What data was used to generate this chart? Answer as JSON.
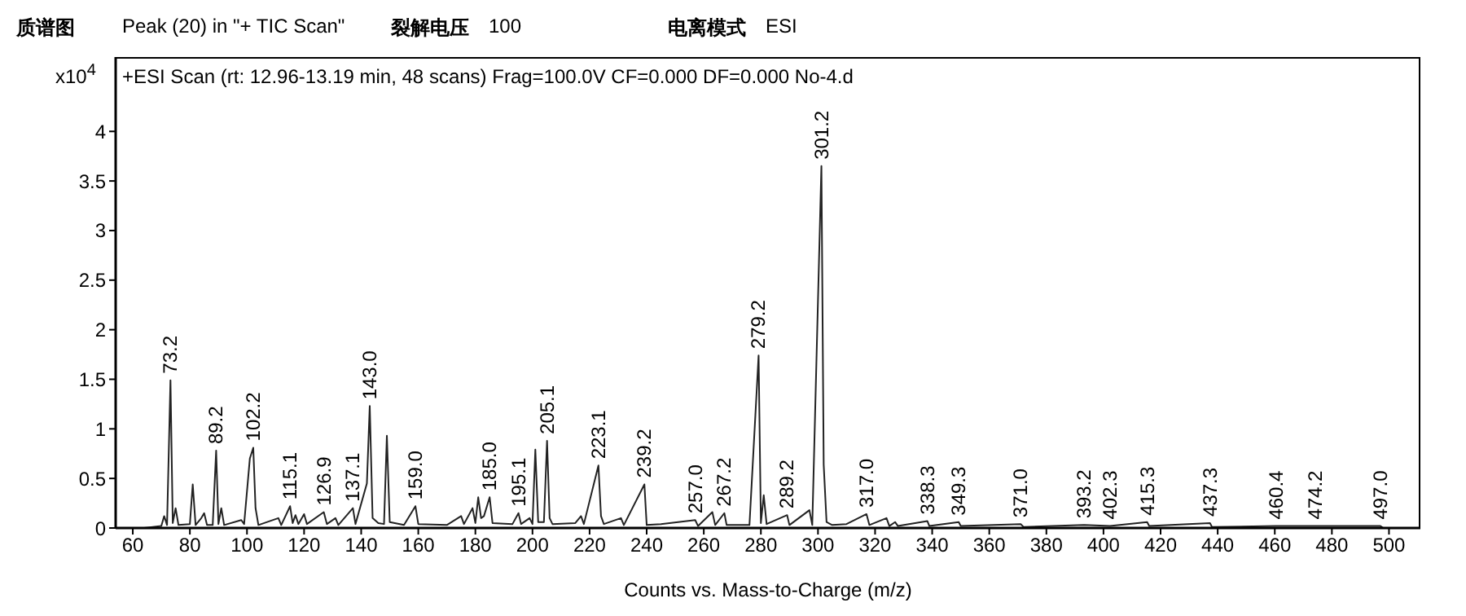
{
  "chart_data": {
    "type": "line",
    "title": "+ESI Scan (rt: 12.96-13.19 min, 48 scans) Frag=100.0V CF=0.000 DF=0.000 No-4.d",
    "xlabel": "Counts vs. Mass-to-Charge (m/z)",
    "ylabel": "x10$^{4}$",
    "xlim": [
      54,
      511
    ],
    "xticks": [
      60,
      80,
      100,
      120,
      140,
      160,
      180,
      200,
      220,
      240,
      260,
      280,
      300,
      320,
      340,
      360,
      380,
      400,
      420,
      440,
      460,
      480,
      500
    ],
    "ylim": [
      0,
      4.75
    ],
    "yticks": [
      0,
      0.5,
      1,
      1.5,
      2,
      2.5,
      3,
      3.5,
      4
    ],
    "grid": false,
    "legend": false,
    "series": [
      {
        "color": "#222222",
        "x": [
          64,
          70,
          71,
          72,
          73.2,
          74,
          75,
          76,
          80,
          81,
          82,
          84,
          85,
          86,
          88,
          89.2,
          90,
          91,
          92,
          98,
          99,
          101,
          102.2,
          103,
          104,
          111,
          112,
          115.1,
          116,
          117,
          118,
          120,
          121,
          126.9,
          128,
          131,
          132,
          137.1,
          138,
          142,
          143.0,
          144,
          146,
          148,
          149,
          150,
          155,
          159.0,
          160,
          170,
          175,
          176,
          179,
          180,
          181,
          182,
          183,
          185.0,
          186,
          193,
          195.1,
          196,
          199,
          200,
          201,
          202,
          204,
          205.1,
          206,
          207,
          215,
          217,
          218,
          223.1,
          224,
          225,
          231,
          232,
          239.2,
          240,
          245,
          257.0,
          258,
          263,
          264,
          267.2,
          268,
          276,
          279.2,
          280,
          281,
          282,
          289.2,
          290,
          297,
          298,
          301.2,
          302,
          303,
          305,
          310,
          317.0,
          318,
          324,
          325,
          327,
          328,
          338.3,
          339,
          349.3,
          350,
          371.0,
          372,
          393.2,
          402.3,
          415.3,
          416,
          437.3,
          438,
          460.4,
          474.2,
          497.0,
          498
        ],
        "values": [
          0,
          0.02,
          0.12,
          0.03,
          1.49,
          0.05,
          0.2,
          0.03,
          0.04,
          0.44,
          0.03,
          0.1,
          0.15,
          0.03,
          0.03,
          0.78,
          0.04,
          0.2,
          0.03,
          0.08,
          0.04,
          0.7,
          0.81,
          0.2,
          0.03,
          0.1,
          0.03,
          0.22,
          0.05,
          0.13,
          0.04,
          0.14,
          0.04,
          0.16,
          0.04,
          0.1,
          0.03,
          0.2,
          0.04,
          0.45,
          1.23,
          0.1,
          0.05,
          0.04,
          0.93,
          0.06,
          0.03,
          0.22,
          0.04,
          0.03,
          0.12,
          0.04,
          0.2,
          0.05,
          0.31,
          0.1,
          0.12,
          0.31,
          0.05,
          0.04,
          0.15,
          0.04,
          0.1,
          0.04,
          0.79,
          0.06,
          0.06,
          0.88,
          0.1,
          0.04,
          0.05,
          0.12,
          0.04,
          0.63,
          0.12,
          0.04,
          0.1,
          0.03,
          0.44,
          0.03,
          0.04,
          0.08,
          0.02,
          0.16,
          0.03,
          0.15,
          0.03,
          0.03,
          1.74,
          0.05,
          0.33,
          0.04,
          0.13,
          0.03,
          0.18,
          0.03,
          3.65,
          0.64,
          0.06,
          0.03,
          0.04,
          0.14,
          0.03,
          0.1,
          0.02,
          0.06,
          0.02,
          0.07,
          0.02,
          0.06,
          0.02,
          0.04,
          0.01,
          0.03,
          0.02,
          0.06,
          0.02,
          0.05,
          0.01,
          0.02,
          0.02,
          0.02,
          0
        ]
      }
    ],
    "annotations": [
      "质谱图",
      "Peak (20) in \"+ TIC Scan\"",
      "裂解电压",
      "100",
      "电离模式",
      "ESI",
      {
        "text": "73.2",
        "x": 73.2,
        "y": 1.49
      },
      {
        "text": "89.2",
        "x": 89.2,
        "y": 0.78
      },
      {
        "text": "102.2",
        "x": 102.2,
        "y": 0.81
      },
      {
        "text": "115.1",
        "x": 115.1,
        "y": 0.22
      },
      {
        "text": "126.9",
        "x": 126.9,
        "y": 0.16
      },
      {
        "text": "137.1",
        "x": 137.1,
        "y": 0.2
      },
      {
        "text": "143.0",
        "x": 143.0,
        "y": 1.23
      },
      {
        "text": "159.0",
        "x": 159.0,
        "y": 0.22
      },
      {
        "text": "185.0",
        "x": 185.0,
        "y": 0.31
      },
      {
        "text": "195.1",
        "x": 195.1,
        "y": 0.15
      },
      {
        "text": "205.1",
        "x": 205.1,
        "y": 0.88
      },
      {
        "text": "223.1",
        "x": 223.1,
        "y": 0.63
      },
      {
        "text": "239.2",
        "x": 239.2,
        "y": 0.44
      },
      {
        "text": "257.0",
        "x": 257.0,
        "y": 0.08
      },
      {
        "text": "267.2",
        "x": 267.2,
        "y": 0.15
      },
      {
        "text": "279.2",
        "x": 279.2,
        "y": 1.74
      },
      {
        "text": "289.2",
        "x": 289.2,
        "y": 0.13
      },
      {
        "text": "301.2",
        "x": 301.2,
        "y": 3.65
      },
      {
        "text": "317.0",
        "x": 317.0,
        "y": 0.14
      },
      {
        "text": "338.3",
        "x": 338.3,
        "y": 0.07
      },
      {
        "text": "349.3",
        "x": 349.3,
        "y": 0.06
      },
      {
        "text": "371.0",
        "x": 371.0,
        "y": 0.04
      },
      {
        "text": "393.2",
        "x": 393.2,
        "y": 0.03
      },
      {
        "text": "402.3",
        "x": 402.3,
        "y": 0.02
      },
      {
        "text": "415.3",
        "x": 415.3,
        "y": 0.06
      },
      {
        "text": "437.3",
        "x": 437.3,
        "y": 0.05
      },
      {
        "text": "460.4",
        "x": 460.4,
        "y": 0.02
      },
      {
        "text": "474.2",
        "x": 474.2,
        "y": 0.02
      },
      {
        "text": "497.0",
        "x": 497.0,
        "y": 0.02
      }
    ]
  }
}
